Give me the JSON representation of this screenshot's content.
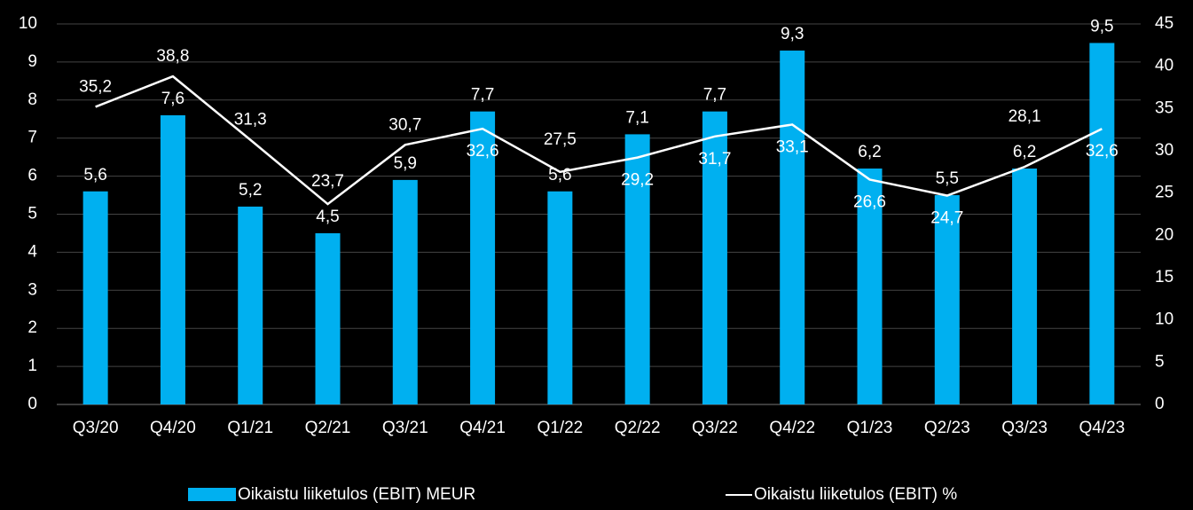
{
  "chart_data": {
    "type": "bar-line",
    "categories": [
      "Q3/20",
      "Q4/20",
      "Q1/21",
      "Q2/21",
      "Q3/21",
      "Q4/21",
      "Q1/22",
      "Q2/22",
      "Q3/22",
      "Q4/22",
      "Q1/23",
      "Q2/23",
      "Q3/23",
      "Q4/23"
    ],
    "series": [
      {
        "name": "Oikaistu liiketulos (EBIT) MEUR",
        "type": "bar",
        "color": "#00b0f0",
        "values": [
          5.6,
          7.6,
          5.2,
          4.5,
          5.9,
          7.7,
          5.6,
          7.1,
          7.7,
          9.3,
          6.2,
          5.5,
          6.2,
          9.5
        ],
        "value_labels": [
          "5,6",
          "7,6",
          "5,2",
          "4,5",
          "5,9",
          "7,7",
          "5,6",
          "7,1",
          "7,7",
          "9,3",
          "6,2",
          "5,5",
          "6,2",
          "9,5"
        ]
      },
      {
        "name": "Oikaistu liiketulos (EBIT) %",
        "type": "line",
        "color": "#ffffff",
        "axis": "y2",
        "values": [
          35.2,
          38.8,
          31.3,
          23.7,
          30.7,
          32.6,
          27.5,
          29.2,
          31.7,
          33.1,
          26.6,
          24.7,
          28.1,
          32.6
        ],
        "value_labels": [
          "35,2",
          "38,8",
          "31,3",
          "23,7",
          "30,7",
          "32,6",
          "27,5",
          "29,2",
          "31,7",
          "33,1",
          "26,6",
          "24,7",
          "28,1",
          "32,6"
        ]
      }
    ],
    "ylim": [
      0,
      10
    ],
    "yticks": [
      0,
      1,
      2,
      3,
      4,
      5,
      6,
      7,
      8,
      9,
      10
    ],
    "y2lim": [
      0,
      45
    ],
    "y2ticks": [
      0,
      5,
      10,
      15,
      20,
      25,
      30,
      35,
      40,
      45
    ],
    "grid": true
  }
}
